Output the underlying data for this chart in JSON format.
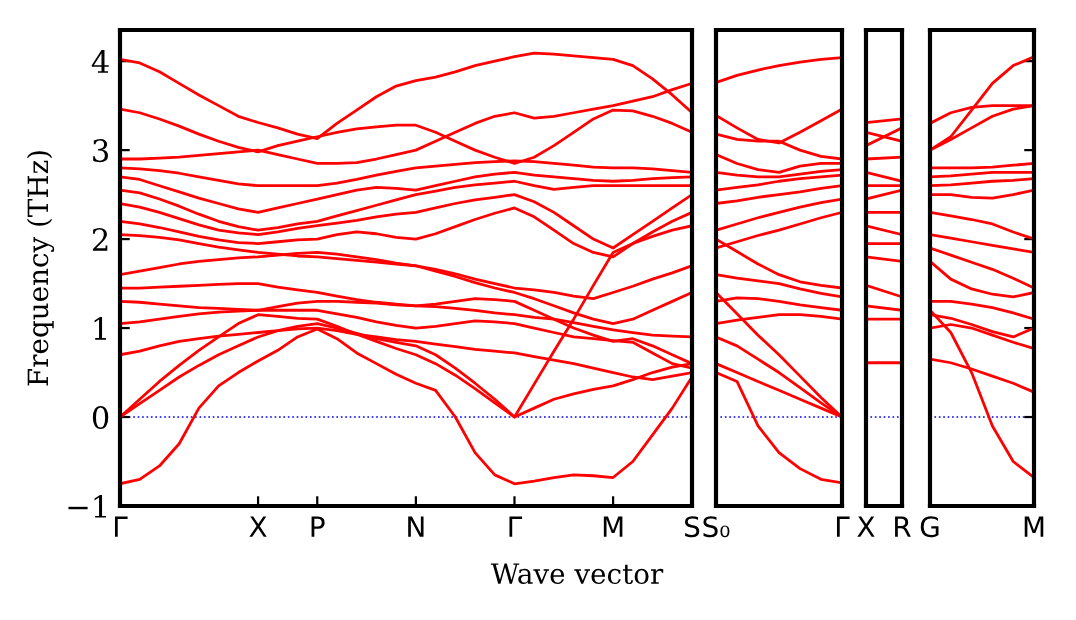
{
  "chart_data": [
    {
      "type": "line",
      "ylabel": "Frequency (THz)",
      "xlabel": "Wave vector",
      "ylim": [
        -1,
        4.35
      ],
      "yticks": [
        -1,
        0,
        1,
        2,
        3,
        4
      ],
      "categories": [
        "Γ",
        null,
        null,
        null,
        null,
        null,
        null,
        "X",
        null,
        null,
        "P",
        null,
        null,
        null,
        null,
        "N",
        null,
        null,
        null,
        null,
        "Γ",
        null,
        null,
        null,
        null,
        "M",
        null,
        null,
        null,
        "S"
      ],
      "ref_lines": [
        {
          "axis": "y",
          "value": 0,
          "color": "#0000ff",
          "line_style": "dotted"
        }
      ],
      "series": [
        {
          "color": "#ff0000",
          "values": [
            4.02,
            3.98,
            3.88,
            3.75,
            3.62,
            3.5,
            3.38,
            3.31,
            3.25,
            3.18,
            3.13,
            3.3,
            3.45,
            3.6,
            3.72,
            3.78,
            3.82,
            3.88,
            3.95,
            4.0,
            4.05,
            4.09,
            4.08,
            4.06,
            4.04,
            4.02,
            3.95,
            3.8,
            3.62,
            3.42
          ]
        },
        {
          "color": "#ff0000",
          "values": [
            3.46,
            3.42,
            3.35,
            3.27,
            3.18,
            3.1,
            3.03,
            2.98,
            3.05,
            3.1,
            3.15,
            3.2,
            3.24,
            3.26,
            3.28,
            3.28,
            3.2,
            3.1,
            3.0,
            2.92,
            2.85,
            2.92,
            3.05,
            3.2,
            3.35,
            3.45,
            3.44,
            3.38,
            3.3,
            3.2
          ]
        },
        {
          "color": "#ff0000",
          "values": [
            2.9,
            2.9,
            2.91,
            2.92,
            2.94,
            2.96,
            2.98,
            3.0,
            2.95,
            2.9,
            2.85,
            2.85,
            2.86,
            2.9,
            2.95,
            3.0,
            3.1,
            3.2,
            3.3,
            3.38,
            3.42,
            3.36,
            3.38,
            3.42,
            3.46,
            3.5,
            3.55,
            3.6,
            3.68,
            3.75
          ]
        },
        {
          "color": "#ff0000",
          "values": [
            2.8,
            2.79,
            2.77,
            2.74,
            2.7,
            2.66,
            2.62,
            2.6,
            2.6,
            2.6,
            2.6,
            2.63,
            2.67,
            2.72,
            2.76,
            2.8,
            2.82,
            2.84,
            2.86,
            2.87,
            2.88,
            2.87,
            2.85,
            2.83,
            2.81,
            2.8,
            2.8,
            2.79,
            2.77,
            2.75
          ]
        },
        {
          "color": "#ff0000",
          "values": [
            2.7,
            2.67,
            2.6,
            2.53,
            2.46,
            2.4,
            2.34,
            2.3,
            2.35,
            2.4,
            2.45,
            2.5,
            2.55,
            2.58,
            2.57,
            2.55,
            2.6,
            2.65,
            2.7,
            2.73,
            2.75,
            2.72,
            2.7,
            2.68,
            2.66,
            2.65,
            2.66,
            2.68,
            2.69,
            2.7
          ]
        },
        {
          "color": "#ff0000",
          "values": [
            2.55,
            2.52,
            2.45,
            2.37,
            2.28,
            2.2,
            2.14,
            2.1,
            2.13,
            2.17,
            2.2,
            2.26,
            2.32,
            2.38,
            2.44,
            2.5,
            2.54,
            2.58,
            2.61,
            2.63,
            2.65,
            2.6,
            2.56,
            2.58,
            2.6,
            2.6,
            2.6,
            2.6,
            2.6,
            2.6
          ]
        },
        {
          "color": "#ff0000",
          "values": [
            2.4,
            2.36,
            2.3,
            2.23,
            2.16,
            2.1,
            2.07,
            2.05,
            2.08,
            2.12,
            2.15,
            2.18,
            2.21,
            2.25,
            2.28,
            2.3,
            2.35,
            2.4,
            2.44,
            2.47,
            2.5,
            2.42,
            2.3,
            2.15,
            2.0,
            1.9,
            2.05,
            2.2,
            2.35,
            2.5
          ]
        },
        {
          "color": "#ff0000",
          "values": [
            2.2,
            2.17,
            2.13,
            2.08,
            2.03,
            1.99,
            1.96,
            1.95,
            1.97,
            1.99,
            2.0,
            2.05,
            2.08,
            2.06,
            2.02,
            2.0,
            2.06,
            2.14,
            2.22,
            2.29,
            2.35,
            2.25,
            2.1,
            1.95,
            1.85,
            1.8,
            1.95,
            2.08,
            2.2,
            2.3
          ]
        },
        {
          "color": "#ff0000",
          "values": [
            2.05,
            2.04,
            2.02,
            1.99,
            1.95,
            1.91,
            1.88,
            1.85,
            1.83,
            1.81,
            1.8,
            1.78,
            1.76,
            1.74,
            1.72,
            1.7,
            1.66,
            1.61,
            1.55,
            1.5,
            1.45,
            1.43,
            1.4,
            1.36,
            1.33,
            1.4,
            1.47,
            1.55,
            1.62,
            1.7
          ]
        },
        {
          "color": "#ff0000",
          "values": [
            1.6,
            1.64,
            1.68,
            1.72,
            1.75,
            1.77,
            1.79,
            1.8,
            1.82,
            1.84,
            1.85,
            1.83,
            1.8,
            1.77,
            1.73,
            1.7,
            1.64,
            1.58,
            1.51,
            1.45,
            1.4,
            1.33,
            1.25,
            1.17,
            1.1,
            1.05,
            1.1,
            1.2,
            1.3,
            1.4
          ]
        },
        {
          "color": "#ff0000",
          "values": [
            1.45,
            1.45,
            1.46,
            1.47,
            1.48,
            1.49,
            1.5,
            1.5,
            1.46,
            1.43,
            1.4,
            1.36,
            1.32,
            1.29,
            1.27,
            1.25,
            1.27,
            1.3,
            1.33,
            1.32,
            1.3,
            1.2,
            1.1,
            1.0,
            0.92,
            0.85,
            0.88,
            0.8,
            0.7,
            0.6
          ]
        },
        {
          "color": "#ff0000",
          "values": [
            1.3,
            1.29,
            1.27,
            1.25,
            1.23,
            1.22,
            1.21,
            1.2,
            1.24,
            1.28,
            1.3,
            1.3,
            1.29,
            1.28,
            1.26,
            1.25,
            1.24,
            1.22,
            1.2,
            1.17,
            1.15,
            1.12,
            1.1,
            1.06,
            1.02,
            0.98,
            0.95,
            0.92,
            0.91,
            0.9
          ]
        },
        {
          "color": "#ff0000",
          "values": [
            1.05,
            1.07,
            1.1,
            1.13,
            1.16,
            1.18,
            1.19,
            1.2,
            1.2,
            1.2,
            1.2,
            1.16,
            1.12,
            1.07,
            1.03,
            1.0,
            1.02,
            1.05,
            1.08,
            1.07,
            1.05,
            1.0,
            0.95,
            0.9,
            0.88,
            0.86,
            0.84,
            0.72,
            0.6,
            0.55
          ]
        },
        {
          "color": "#ff0000",
          "values": [
            0.7,
            0.74,
            0.8,
            0.85,
            0.88,
            0.91,
            0.93,
            0.95,
            0.97,
            0.99,
            1.0,
            0.97,
            0.93,
            0.9,
            0.87,
            0.85,
            0.82,
            0.79,
            0.76,
            0.74,
            0.72,
            0.68,
            0.64,
            0.6,
            0.55,
            0.5,
            0.45,
            0.42,
            0.46,
            0.5
          ]
        },
        {
          "color": "#ff0000",
          "values": [
            0,
            0.15,
            0.3,
            0.45,
            0.58,
            0.7,
            0.8,
            0.9,
            0.97,
            1.02,
            1.05,
            1.0,
            0.94,
            0.88,
            0.84,
            0.8,
            0.7,
            0.55,
            0.38,
            0.2,
            0,
            0.37,
            0.74,
            1.1,
            1.48,
            1.85,
            1.95,
            2.03,
            2.1,
            2.15
          ]
        },
        {
          "color": "#ff0000",
          "values": [
            0,
            0.2,
            0.4,
            0.58,
            0.75,
            0.9,
            1.05,
            1.15,
            1.13,
            1.11,
            1.1,
            1.02,
            0.93,
            0.85,
            0.77,
            0.7,
            0.6,
            0.47,
            0.32,
            0.16,
            0,
            0.1,
            0.2,
            0.26,
            0.31,
            0.35,
            0.42,
            0.5,
            0.56,
            0.6
          ]
        },
        {
          "color": "#ff0000",
          "values": [
            -0.75,
            -0.7,
            -0.55,
            -0.3,
            0.1,
            0.35,
            0.5,
            0.63,
            0.75,
            0.9,
            0.99,
            0.88,
            0.72,
            0.6,
            0.48,
            0.38,
            0.3,
            0.0,
            -0.4,
            -0.65,
            -0.75,
            -0.72,
            -0.68,
            -0.65,
            -0.66,
            -0.68,
            -0.5,
            -0.2,
            0.1,
            0.45
          ]
        }
      ]
    },
    {
      "type": "line",
      "ylim": [
        -1,
        4.35
      ],
      "yticks": [
        -1,
        0,
        1,
        2,
        3,
        4
      ],
      "tick_labels": "x",
      "categories": [
        "S₀",
        null,
        null,
        null,
        null,
        null,
        "Γ"
      ],
      "ref_lines": [
        {
          "axis": "y",
          "value": 0,
          "color": "#0000ff",
          "line_style": "dotted"
        }
      ],
      "series": [
        {
          "color": "#ff0000",
          "values": [
            3.76,
            3.84,
            3.9,
            3.95,
            3.99,
            4.02,
            4.04
          ]
        },
        {
          "color": "#ff0000",
          "values": [
            3.39,
            3.25,
            3.12,
            3.08,
            3.2,
            3.33,
            3.46
          ]
        },
        {
          "color": "#ff0000",
          "values": [
            3.18,
            3.12,
            3.1,
            3.1,
            3.0,
            2.93,
            2.9
          ]
        },
        {
          "color": "#ff0000",
          "values": [
            2.95,
            2.85,
            2.78,
            2.75,
            2.82,
            2.85,
            2.85
          ]
        },
        {
          "color": "#ff0000",
          "values": [
            2.75,
            2.72,
            2.7,
            2.7,
            2.73,
            2.76,
            2.78
          ]
        },
        {
          "color": "#ff0000",
          "values": [
            2.55,
            2.58,
            2.61,
            2.65,
            2.68,
            2.7,
            2.72
          ]
        },
        {
          "color": "#ff0000",
          "values": [
            2.4,
            2.43,
            2.47,
            2.5,
            2.53,
            2.57,
            2.6
          ]
        },
        {
          "color": "#ff0000",
          "values": [
            2.1,
            2.17,
            2.24,
            2.3,
            2.36,
            2.41,
            2.45
          ]
        },
        {
          "color": "#ff0000",
          "values": [
            1.9,
            1.97,
            2.04,
            2.1,
            2.17,
            2.24,
            2.3
          ]
        },
        {
          "color": "#ff0000",
          "values": [
            2.0,
            1.86,
            1.72,
            1.6,
            1.52,
            1.48,
            1.45
          ]
        },
        {
          "color": "#ff0000",
          "values": [
            1.6,
            1.56,
            1.53,
            1.5,
            1.44,
            1.39,
            1.35
          ]
        },
        {
          "color": "#ff0000",
          "values": [
            1.3,
            1.34,
            1.33,
            1.3,
            1.26,
            1.23,
            1.2
          ]
        },
        {
          "color": "#ff0000",
          "values": [
            1.05,
            1.09,
            1.12,
            1.15,
            1.15,
            1.13,
            1.1
          ]
        },
        {
          "color": "#ff0000",
          "values": [
            1.4,
            1.16,
            0.92,
            0.7,
            0.46,
            0.22,
            0
          ]
        },
        {
          "color": "#ff0000",
          "values": [
            0.9,
            0.8,
            0.65,
            0.5,
            0.33,
            0.16,
            0
          ]
        },
        {
          "color": "#ff0000",
          "values": [
            0.6,
            0.5,
            0.4,
            0.3,
            0.2,
            0.1,
            0
          ]
        },
        {
          "color": "#ff0000",
          "values": [
            0.5,
            0.4,
            -0.1,
            -0.4,
            -0.58,
            -0.7,
            -0.74
          ]
        }
      ]
    },
    {
      "type": "line",
      "ylim": [
        -1,
        4.35
      ],
      "yticks": [
        -1,
        0,
        1,
        2,
        3,
        4
      ],
      "tick_labels": "x",
      "categories": [
        "X",
        "R"
      ],
      "ref_lines": [
        {
          "axis": "y",
          "value": 0,
          "color": "#0000ff",
          "line_style": "dotted"
        }
      ],
      "series": [
        {
          "color": "#ff0000",
          "values": [
            3.31,
            3.35
          ]
        },
        {
          "color": "#ff0000",
          "values": [
            3.2,
            3.1
          ]
        },
        {
          "color": "#ff0000",
          "values": [
            3.05,
            3.25
          ]
        },
        {
          "color": "#ff0000",
          "values": [
            2.9,
            2.92
          ]
        },
        {
          "color": "#ff0000",
          "values": [
            2.75,
            2.65
          ]
        },
        {
          "color": "#ff0000",
          "values": [
            2.6,
            2.6
          ]
        },
        {
          "color": "#ff0000",
          "values": [
            2.45,
            2.55
          ]
        },
        {
          "color": "#ff0000",
          "values": [
            2.3,
            2.3
          ]
        },
        {
          "color": "#ff0000",
          "values": [
            2.15,
            2.05
          ]
        },
        {
          "color": "#ff0000",
          "values": [
            1.95,
            1.95
          ]
        },
        {
          "color": "#ff0000",
          "values": [
            1.8,
            1.75
          ]
        },
        {
          "color": "#ff0000",
          "values": [
            1.48,
            1.35
          ]
        },
        {
          "color": "#ff0000",
          "values": [
            1.25,
            1.2
          ]
        },
        {
          "color": "#ff0000",
          "values": [
            1.1,
            1.1
          ]
        },
        {
          "color": "#ff0000",
          "values": [
            0.61,
            0.61
          ]
        }
      ]
    },
    {
      "type": "line",
      "ylim": [
        -1,
        4.35
      ],
      "yticks": [
        -1,
        0,
        1,
        2,
        3,
        4
      ],
      "tick_labels": "x",
      "categories": [
        "G",
        null,
        null,
        null,
        null,
        "M"
      ],
      "ref_lines": [
        {
          "axis": "y",
          "value": 0,
          "color": "#0000ff",
          "line_style": "dotted"
        }
      ],
      "series": [
        {
          "color": "#ff0000",
          "values": [
            3.0,
            3.15,
            3.45,
            3.75,
            3.95,
            4.05
          ]
        },
        {
          "color": "#ff0000",
          "values": [
            3.3,
            3.42,
            3.48,
            3.5,
            3.5,
            3.5
          ]
        },
        {
          "color": "#ff0000",
          "values": [
            3.0,
            3.12,
            3.25,
            3.38,
            3.46,
            3.5
          ]
        },
        {
          "color": "#ff0000",
          "values": [
            2.8,
            2.8,
            2.8,
            2.81,
            2.83,
            2.85
          ]
        },
        {
          "color": "#ff0000",
          "values": [
            2.7,
            2.71,
            2.73,
            2.75,
            2.75,
            2.75
          ]
        },
        {
          "color": "#ff0000",
          "values": [
            2.6,
            2.61,
            2.63,
            2.65,
            2.66,
            2.68
          ]
        },
        {
          "color": "#ff0000",
          "values": [
            2.5,
            2.5,
            2.47,
            2.46,
            2.5,
            2.55
          ]
        },
        {
          "color": "#ff0000",
          "values": [
            2.3,
            2.26,
            2.22,
            2.17,
            2.08,
            2.0
          ]
        },
        {
          "color": "#ff0000",
          "values": [
            2.05,
            2.01,
            1.97,
            1.93,
            1.89,
            1.85
          ]
        },
        {
          "color": "#ff0000",
          "values": [
            1.9,
            1.82,
            1.74,
            1.66,
            1.56,
            1.45
          ]
        },
        {
          "color": "#ff0000",
          "values": [
            1.75,
            1.55,
            1.44,
            1.38,
            1.35,
            1.4
          ]
        },
        {
          "color": "#ff0000",
          "values": [
            1.3,
            1.3,
            1.27,
            1.23,
            1.17,
            1.1
          ]
        },
        {
          "color": "#ff0000",
          "values": [
            1.15,
            1.11,
            1.04,
            0.96,
            0.9,
            1.0
          ]
        },
        {
          "color": "#ff0000",
          "values": [
            1.0,
            1.04,
            1.0,
            0.92,
            0.84,
            0.77
          ]
        },
        {
          "color": "#ff0000",
          "values": [
            0.65,
            0.61,
            0.54,
            0.46,
            0.38,
            0.28
          ]
        },
        {
          "color": "#ff0000",
          "values": [
            1.2,
            0.95,
            0.5,
            -0.1,
            -0.5,
            -0.68
          ]
        }
      ]
    }
  ]
}
